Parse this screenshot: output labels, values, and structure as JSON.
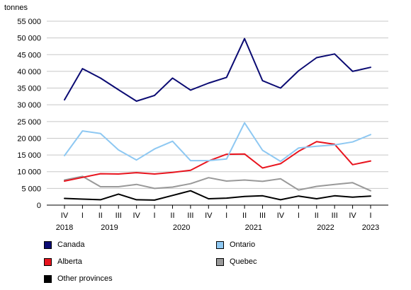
{
  "chart_data": {
    "type": "line",
    "title": "",
    "ylabel": "tonnes",
    "ylim": [
      0,
      55000
    ],
    "yticks": [
      0,
      5000,
      10000,
      15000,
      20000,
      25000,
      30000,
      35000,
      40000,
      45000,
      50000,
      55000
    ],
    "ytick_labels": [
      "0",
      "5 000",
      "10 000",
      "15 000",
      "20 000",
      "25 000",
      "30 000",
      "35 000",
      "40 000",
      "45 000",
      "50 000",
      "55 000"
    ],
    "categories": [
      "IV",
      "I",
      "II",
      "III",
      "IV",
      "I",
      "II",
      "III",
      "IV",
      "I",
      "II",
      "III",
      "IV",
      "I",
      "II",
      "III",
      "IV",
      "I"
    ],
    "years": [
      {
        "label": "2018",
        "at": 0
      },
      {
        "label": "2019",
        "at": 2.5
      },
      {
        "label": "2020",
        "at": 6.5
      },
      {
        "label": "2021",
        "at": 10.5
      },
      {
        "label": "2022",
        "at": 14.5
      },
      {
        "label": "2023",
        "at": 17
      }
    ],
    "grid": true,
    "legend_position": "bottom",
    "series": [
      {
        "name": "Canada",
        "color": "#0b0b73",
        "values": [
          31500,
          40800,
          38000,
          34500,
          31100,
          32800,
          38000,
          34400,
          36500,
          38200,
          49800,
          37200,
          35000,
          40200,
          44100,
          45200,
          40000,
          41200
        ]
      },
      {
        "name": "Ontario",
        "color": "#8ec8f2",
        "values": [
          14800,
          22200,
          21400,
          16500,
          13500,
          16800,
          19100,
          13300,
          13300,
          13800,
          24600,
          16400,
          13100,
          17100,
          17600,
          18000,
          18900,
          21100
        ]
      },
      {
        "name": "Alberta",
        "color": "#e8141e",
        "values": [
          7200,
          8300,
          9400,
          9300,
          9700,
          9300,
          9800,
          10400,
          13200,
          15200,
          15300,
          11100,
          12400,
          16100,
          19000,
          18200,
          12100,
          13200
        ]
      },
      {
        "name": "Quebec",
        "color": "#999999",
        "values": [
          7500,
          8600,
          5500,
          5500,
          6200,
          5000,
          5400,
          6400,
          8200,
          7200,
          7500,
          7100,
          7900,
          4500,
          5600,
          6200,
          6700,
          4300
        ]
      },
      {
        "name": "Other provinces",
        "color": "#000000",
        "values": [
          2000,
          1800,
          1600,
          3300,
          1600,
          1500,
          2900,
          4300,
          1900,
          2100,
          2600,
          2800,
          1600,
          2700,
          1900,
          2800,
          2400,
          2700
        ]
      }
    ]
  }
}
